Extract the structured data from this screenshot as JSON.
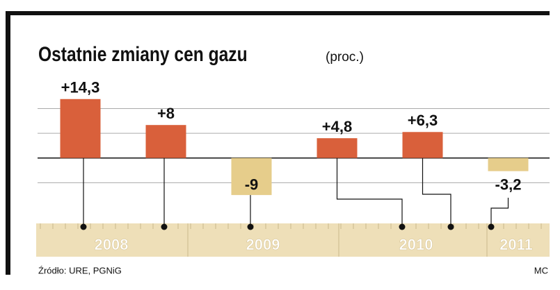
{
  "chart_data": {
    "type": "bar",
    "title": "Ostatnie zmiany cen gazu",
    "subtitle": "(proc.)",
    "categories": [
      null,
      null,
      null,
      null,
      null,
      null
    ],
    "values": [
      14.3,
      8,
      -9,
      4.8,
      6.3,
      -3.2
    ],
    "value_labels": [
      "+14,3",
      "+8",
      "-9",
      "+4,8",
      "+6,3",
      "-3,2"
    ],
    "colors": [
      "#d9603b",
      "#d9603b",
      "#e6cd8b",
      "#d9603b",
      "#d9603b",
      "#e6cd8b"
    ],
    "ylim": [
      -11,
      21
    ],
    "yticks": [
      -6,
      0,
      6,
      12
    ],
    "grid": true,
    "timeline": [
      "2008",
      "2009",
      "2010",
      "2011"
    ],
    "source": "Źródło: URE, PGNiG",
    "credit": "MC"
  }
}
